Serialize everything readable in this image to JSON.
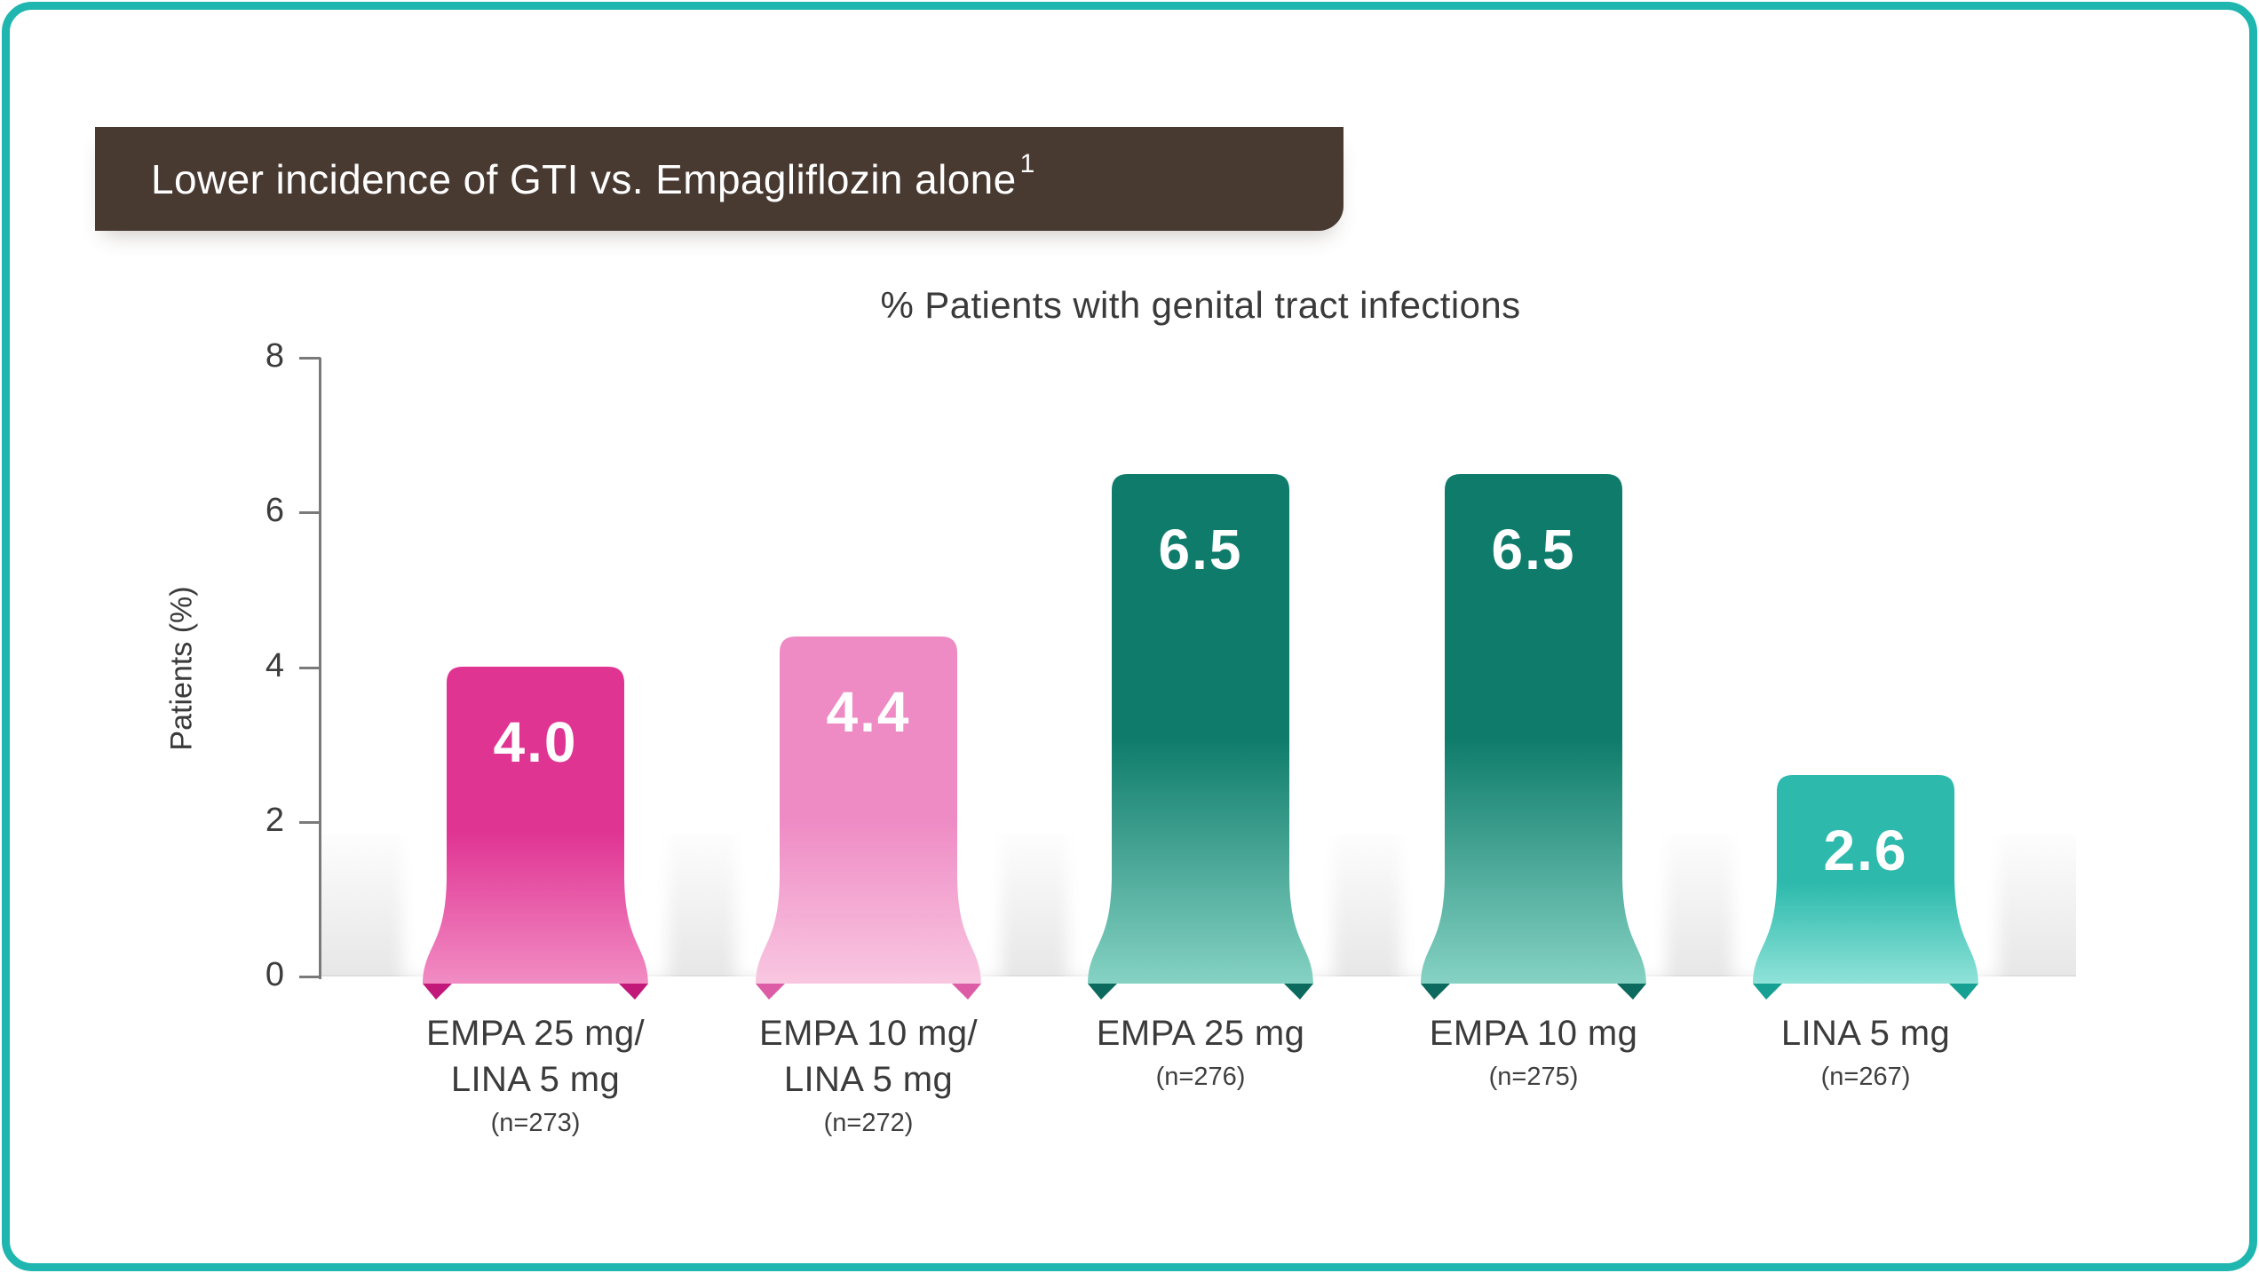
{
  "frame": {
    "border_color": "#1eb6af"
  },
  "banner": {
    "title": "Lower incidence of GTI vs. Empagliflozin alone",
    "superscript": "1",
    "bg_color": "#483931",
    "text_color": "#ffffff"
  },
  "chart_data": {
    "type": "bar",
    "title": "% Patients with genital tract infections",
    "xlabel": "",
    "ylabel": "Patients (%)",
    "ylim": [
      0,
      8
    ],
    "yticks": [
      "0",
      "2",
      "4",
      "6",
      "8"
    ],
    "grid": false,
    "legend_position": "none",
    "categories": [
      "EMPA 25 mg/ LINA 5 mg",
      "EMPA 10 mg/ LINA 5 mg",
      "EMPA 25 mg",
      "EMPA 10 mg",
      "LINA 5 mg"
    ],
    "bars": [
      {
        "label_lines": [
          "EMPA 25 mg/",
          "LINA 5 mg"
        ],
        "n_label": "(n=273)",
        "value": 4.0,
        "display_value": "4.0",
        "color": "#e03493",
        "color_bottom": "#f18cc3",
        "tip_color": "#c2187a"
      },
      {
        "label_lines": [
          "EMPA 10 mg/",
          "LINA 5 mg"
        ],
        "n_label": "(n=272)",
        "value": 4.4,
        "display_value": "4.4",
        "color": "#ee8ac4",
        "color_bottom": "#f9c7e1",
        "tip_color": "#dc5ca6"
      },
      {
        "label_lines": [
          "EMPA 25 mg"
        ],
        "n_label": "(n=276)",
        "value": 6.5,
        "display_value": "6.5",
        "color": "#0f7c6b",
        "color_bottom": "#85d2c3",
        "tip_color": "#0b6a5d"
      },
      {
        "label_lines": [
          "EMPA 10 mg"
        ],
        "n_label": "(n=275)",
        "value": 6.5,
        "display_value": "6.5",
        "color": "#0f7c6b",
        "color_bottom": "#85d2c3",
        "tip_color": "#0b6a5d"
      },
      {
        "label_lines": [
          "LINA 5 mg"
        ],
        "n_label": "(n=267)",
        "value": 2.6,
        "display_value": "2.6",
        "color": "#2dbaac",
        "color_bottom": "#8fe2d8",
        "tip_color": "#16a094"
      }
    ],
    "value_label_color": "#ffffff",
    "floor_band_color": "#e7e7e7"
  }
}
